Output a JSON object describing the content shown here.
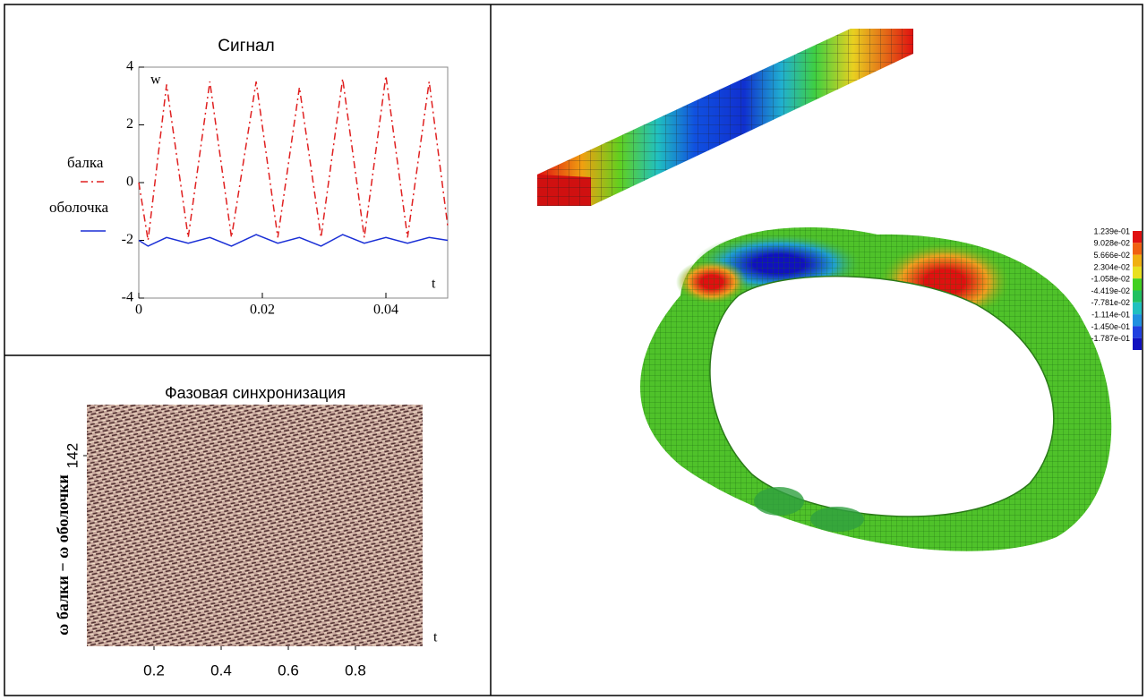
{
  "chart_data": [
    {
      "type": "line",
      "title": "Сигнал",
      "x_label": "t",
      "y_label": "w",
      "x": [
        0,
        0.0015,
        0.0045,
        0.008,
        0.0115,
        0.015,
        0.019,
        0.0225,
        0.026,
        0.0295,
        0.033,
        0.0365,
        0.04,
        0.0435,
        0.047,
        0.05
      ],
      "series": [
        {
          "name": "балка",
          "color": "#e02020",
          "values": [
            0,
            -2,
            3.4,
            -1.9,
            3.5,
            -1.9,
            3.5,
            -1.9,
            3.3,
            -1.9,
            3.6,
            -1.9,
            3.7,
            -1.9,
            3.5,
            -1.5
          ]
        },
        {
          "name": "оболочка",
          "color": "#1a2fd6",
          "values": [
            -2,
            -2.2,
            -1.9,
            -2.1,
            -1.9,
            -2.2,
            -1.8,
            -2.1,
            -1.9,
            -2.2,
            -1.8,
            -2.1,
            -1.9,
            -2.1,
            -1.9,
            -2
          ]
        }
      ],
      "xlim": [
        0,
        0.05
      ],
      "xticks": [
        0,
        0.02,
        0.04
      ],
      "ylim": [
        -4,
        4
      ],
      "yticks": [
        -4,
        -2,
        0,
        2,
        4
      ]
    },
    {
      "type": "heatmap",
      "title": "Фазовая синхронизация",
      "x_label": "t",
      "y_label": "ω балки − ω оболочки",
      "xlim": [
        0,
        1
      ],
      "xticks": [
        0.2,
        0.4,
        0.6,
        0.8
      ],
      "ylim": [
        0,
        180
      ],
      "yticks": [
        142
      ]
    },
    {
      "type": "field",
      "colorbar": {
        "colors": [
          "#e01010",
          "#f06010",
          "#f0b010",
          "#e8e020",
          "#40d020",
          "#20c060",
          "#20c0c0",
          "#2090e0",
          "#2040e0",
          "#1010c0"
        ],
        "ticks": [
          {
            "value": 0.1239,
            "label": "1.239e-01"
          },
          {
            "value": 0.09028,
            "label": "9.028e-02"
          },
          {
            "value": 0.05666,
            "label": "5.666e-02"
          },
          {
            "value": 0.02304,
            "label": "2.304e-02"
          },
          {
            "value": -0.01058,
            "label": "-1.058e-02"
          },
          {
            "value": -0.04419,
            "label": "-4.419e-02"
          },
          {
            "value": -0.07781,
            "label": "-7.781e-02"
          },
          {
            "value": -0.1114,
            "label": "-1.114e-01"
          },
          {
            "value": -0.145,
            "label": "-1.450e-01"
          },
          {
            "value": -0.1787,
            "label": "-1.787e-01"
          }
        ]
      }
    }
  ]
}
